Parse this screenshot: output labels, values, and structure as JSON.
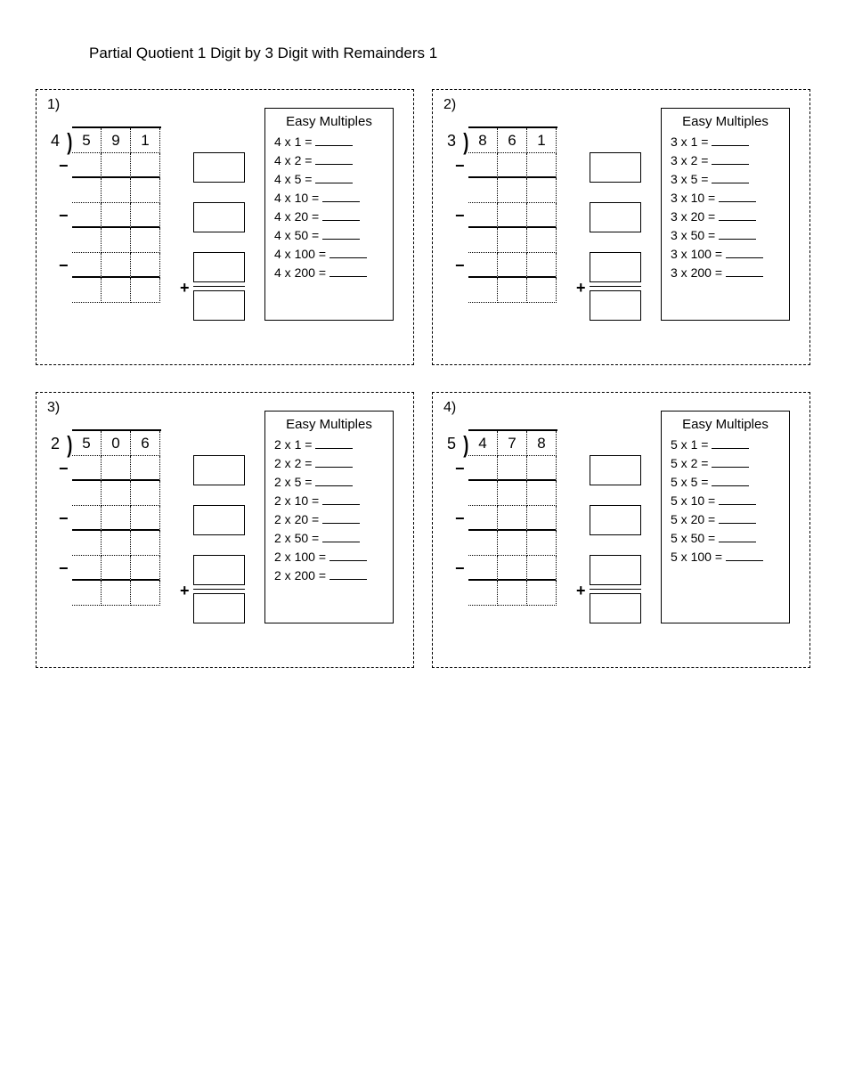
{
  "title": "Partial Quotient 1 Digit by 3 Digit with Remainders 1",
  "multiples_title": "Easy Multiples",
  "problems": [
    {
      "num": "1)",
      "divisor": "4",
      "dividend": [
        "5",
        "9",
        "1"
      ],
      "mult_base": "4",
      "multipliers": [
        "1",
        "2",
        "5",
        "10",
        "20",
        "50",
        "100",
        "200"
      ]
    },
    {
      "num": "2)",
      "divisor": "3",
      "dividend": [
        "8",
        "6",
        "1"
      ],
      "mult_base": "3",
      "multipliers": [
        "1",
        "2",
        "5",
        "10",
        "20",
        "50",
        "100",
        "200"
      ]
    },
    {
      "num": "3)",
      "divisor": "2",
      "dividend": [
        "5",
        "0",
        "6"
      ],
      "mult_base": "2",
      "multipliers": [
        "1",
        "2",
        "5",
        "10",
        "20",
        "50",
        "100",
        "200"
      ]
    },
    {
      "num": "4)",
      "divisor": "5",
      "dividend": [
        "4",
        "7",
        "8"
      ],
      "mult_base": "5",
      "multipliers": [
        "1",
        "2",
        "5",
        "10",
        "20",
        "50",
        "100"
      ]
    }
  ],
  "colors": {
    "border": "#000000",
    "bg": "#ffffff"
  }
}
